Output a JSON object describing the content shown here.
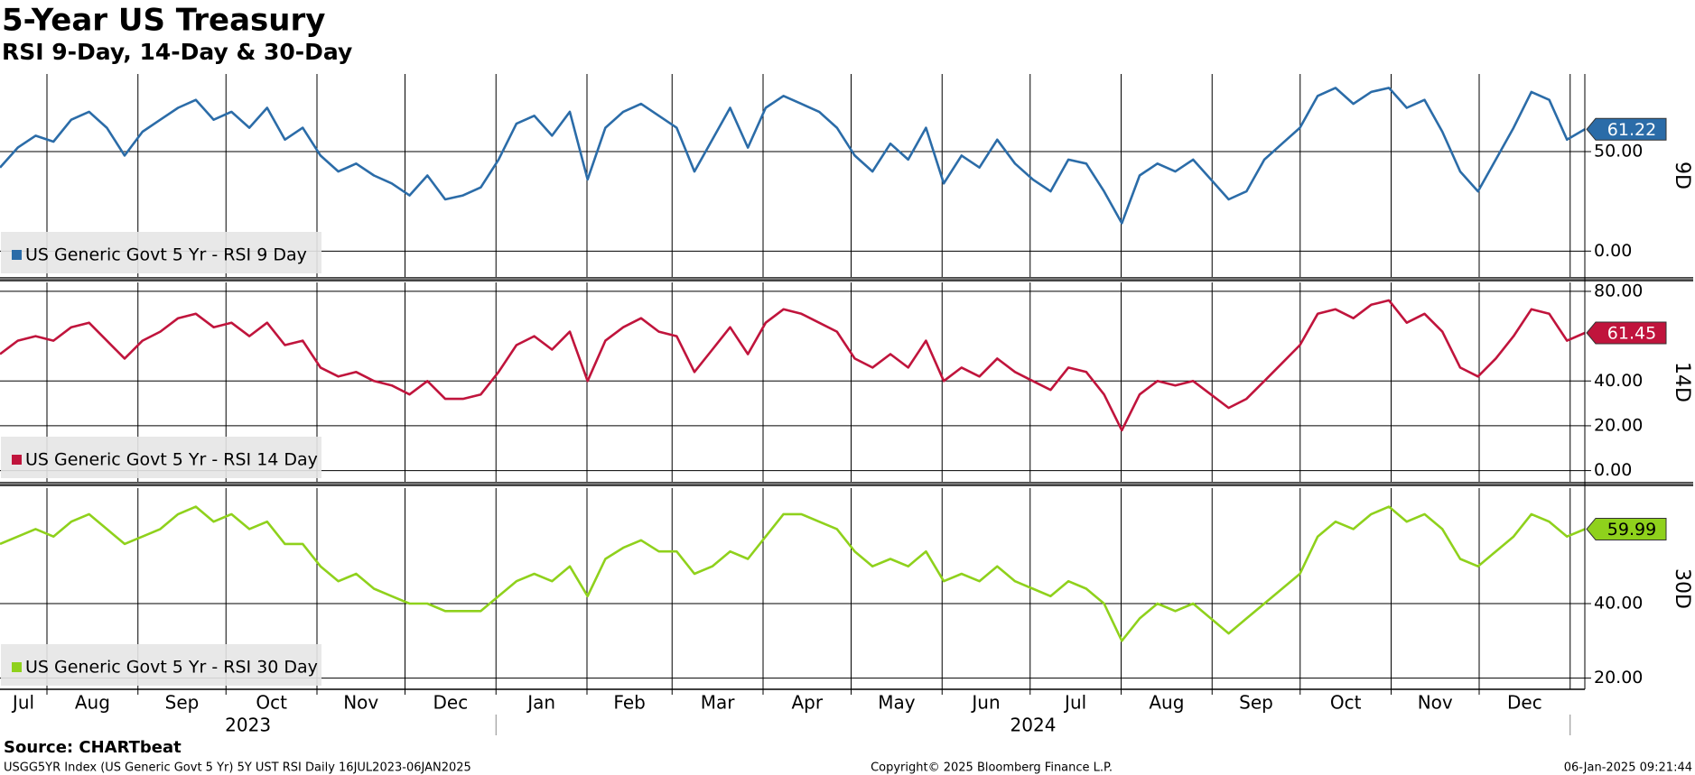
{
  "title": "5-Year US Treasury",
  "subtitle": "RSI 9-Day, 14-Day & 30-Day",
  "x_axis": {
    "categories": [
      "Jul",
      "Aug",
      "Sep",
      "Oct",
      "Nov",
      "Dec",
      "Jan",
      "Feb",
      "Mar",
      "Apr",
      "May",
      "Jun",
      "Jul",
      "Aug",
      "Sep",
      "Oct",
      "Nov",
      "Dec"
    ],
    "years": [
      "2023",
      "2024"
    ]
  },
  "source": "Source: CHARTbeat",
  "footer": {
    "left": "USGG5YR Index (US Generic Govt 5 Yr) 5Y UST RSI  Daily 16JUL2023-06JAN2025",
    "center": "Copyright© 2025 Bloomberg Finance L.P.",
    "right": "06-Jan-2025 09:21:44"
  },
  "chart_data": [
    {
      "type": "line",
      "label": "9D",
      "ylim": [
        -13,
        89
      ],
      "yticks": [
        {
          "value": 0,
          "label": "0.00"
        },
        {
          "value": 50,
          "label": "50.00"
        }
      ],
      "series": [
        {
          "name": "US Generic Govt 5 Yr - RSI 9 Day",
          "color": "#2b6ca8",
          "values": [
            42,
            52,
            58,
            55,
            66,
            70,
            62,
            48,
            60,
            66,
            72,
            76,
            66,
            70,
            62,
            72,
            56,
            62,
            48,
            40,
            44,
            38,
            34,
            28,
            38,
            26,
            28,
            32,
            46,
            64,
            68,
            58,
            70,
            36,
            62,
            70,
            74,
            68,
            62,
            40,
            56,
            72,
            52,
            72,
            78,
            74,
            70,
            62,
            48,
            40,
            54,
            46,
            62,
            34,
            48,
            42,
            56,
            44,
            36,
            30,
            46,
            44,
            30,
            14,
            38,
            44,
            40,
            46,
            36,
            26,
            30,
            46,
            54,
            62,
            78,
            82,
            74,
            80,
            82,
            72,
            76,
            60,
            40,
            30,
            46,
            62,
            80,
            76,
            56,
            61.22
          ]
        }
      ]
    },
    {
      "type": "line",
      "label": "14D",
      "ylim": [
        -5,
        84
      ],
      "yticks": [
        {
          "value": 0,
          "label": "0.00"
        },
        {
          "value": 20,
          "label": "20.00"
        },
        {
          "value": 40,
          "label": "40.00"
        },
        {
          "value": 80,
          "label": "80.00"
        }
      ],
      "series": [
        {
          "name": "US Generic Govt 5 Yr - RSI 14 Day",
          "color": "#c0143c",
          "values": [
            52,
            58,
            60,
            58,
            64,
            66,
            58,
            50,
            58,
            62,
            68,
            70,
            64,
            66,
            60,
            66,
            56,
            58,
            46,
            42,
            44,
            40,
            38,
            34,
            40,
            32,
            32,
            34,
            44,
            56,
            60,
            54,
            62,
            40,
            58,
            64,
            68,
            62,
            60,
            44,
            54,
            64,
            52,
            66,
            72,
            70,
            66,
            62,
            50,
            46,
            52,
            46,
            58,
            40,
            46,
            42,
            50,
            44,
            40,
            36,
            46,
            44,
            34,
            18,
            34,
            40,
            38,
            40,
            34,
            28,
            32,
            40,
            48,
            56,
            70,
            72,
            68,
            74,
            76,
            66,
            70,
            62,
            46,
            42,
            50,
            60,
            72,
            70,
            58,
            61.45
          ]
        }
      ]
    },
    {
      "type": "line",
      "label": "30D",
      "ylim": [
        17,
        71
      ],
      "yticks": [
        {
          "value": 20,
          "label": "20.00"
        },
        {
          "value": 40,
          "label": "40.00"
        }
      ],
      "series": [
        {
          "name": "US Generic Govt 5 Yr - RSI 30 Day",
          "color": "#8fd11c",
          "values": [
            56,
            58,
            60,
            58,
            62,
            64,
            60,
            56,
            58,
            60,
            64,
            66,
            62,
            64,
            60,
            62,
            56,
            56,
            50,
            46,
            48,
            44,
            42,
            40,
            40,
            38,
            38,
            38,
            42,
            46,
            48,
            46,
            50,
            42,
            52,
            55,
            57,
            54,
            54,
            48,
            50,
            54,
            52,
            58,
            64,
            64,
            62,
            60,
            54,
            50,
            52,
            50,
            54,
            46,
            48,
            46,
            50,
            46,
            44,
            42,
            46,
            44,
            40,
            30,
            36,
            40,
            38,
            40,
            36,
            32,
            36,
            40,
            44,
            48,
            58,
            62,
            60,
            64,
            66,
            62,
            64,
            60,
            52,
            50,
            54,
            58,
            64,
            62,
            58,
            59.99
          ]
        }
      ]
    }
  ]
}
